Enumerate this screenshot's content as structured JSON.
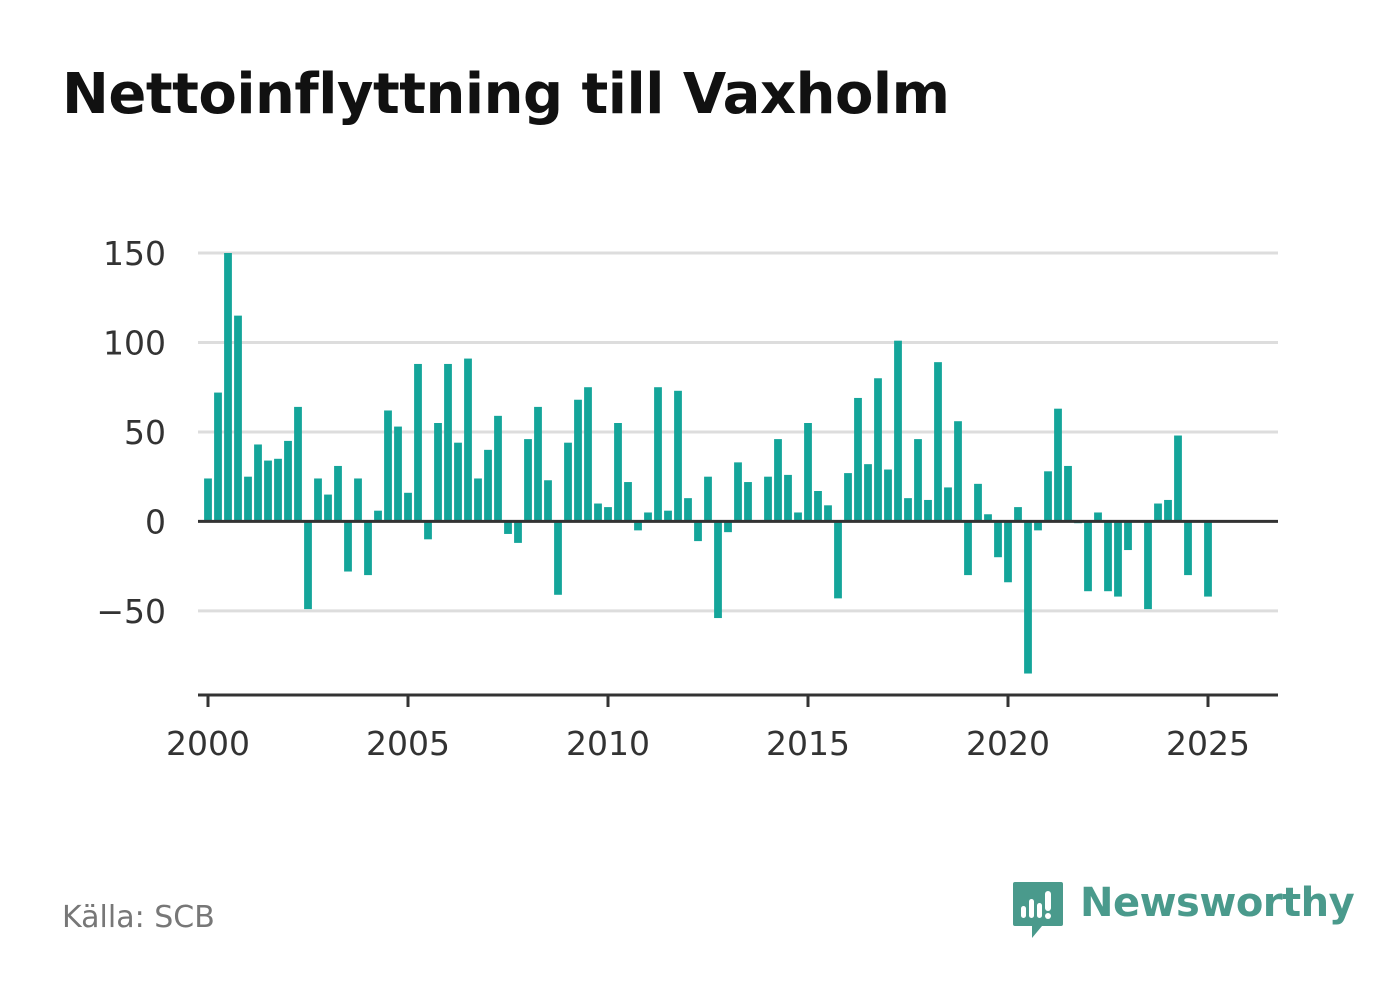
{
  "title": "Nettoinflyttning till Vaxholm",
  "source": "Källa: SCB",
  "brand": {
    "name": "Newsworthy",
    "icon": "newsworthy-logo-icon"
  },
  "colors": {
    "bar": "#14a59a",
    "grid": "#dddddd",
    "axis": "#333333",
    "brand": "#4a9a8c"
  },
  "chart_data": {
    "type": "bar",
    "title": "Nettoinflyttning till Vaxholm",
    "xlabel": "",
    "ylabel": "",
    "x_ticks": [
      "2000",
      "2005",
      "2010",
      "2015",
      "2020",
      "2025"
    ],
    "y_ticks": [
      150,
      100,
      50,
      0,
      -50
    ],
    "y_tick_labels": [
      "150",
      "100",
      "50",
      "0",
      "−50"
    ],
    "xlim": [
      1999.75,
      2026.75
    ],
    "ylim": [
      -97,
      150
    ],
    "grid": true,
    "legend": "none",
    "x_unit": "year (quarterly)",
    "x": [
      2000.0,
      2000.25,
      2000.5,
      2000.75,
      2001.0,
      2001.25,
      2001.5,
      2001.75,
      2002.0,
      2002.25,
      2002.5,
      2002.75,
      2003.0,
      2003.25,
      2003.5,
      2003.75,
      2004.0,
      2004.25,
      2004.5,
      2004.75,
      2005.0,
      2005.25,
      2005.5,
      2005.75,
      2006.0,
      2006.25,
      2006.5,
      2006.75,
      2007.0,
      2007.25,
      2007.5,
      2007.75,
      2008.0,
      2008.25,
      2008.5,
      2008.75,
      2009.0,
      2009.25,
      2009.5,
      2009.75,
      2010.0,
      2010.25,
      2010.5,
      2010.75,
      2011.0,
      2011.25,
      2011.5,
      2011.75,
      2012.0,
      2012.25,
      2012.5,
      2012.75,
      2013.0,
      2013.25,
      2013.5,
      2013.75,
      2014.0,
      2014.25,
      2014.5,
      2014.75,
      2015.0,
      2015.25,
      2015.5,
      2015.75,
      2016.0,
      2016.25,
      2016.5,
      2016.75,
      2017.0,
      2017.25,
      2017.5,
      2017.75,
      2018.0,
      2018.25,
      2018.5,
      2018.75,
      2019.0,
      2019.25,
      2019.5,
      2019.75,
      2020.0,
      2020.25,
      2020.5,
      2020.75,
      2021.0,
      2021.25,
      2021.5,
      2021.75,
      2022.0,
      2022.25,
      2022.5,
      2022.75,
      2023.0,
      2023.25,
      2023.5,
      2023.75,
      2024.0,
      2024.25,
      2024.5,
      2024.75,
      2025.0
    ],
    "values": [
      24,
      72,
      150,
      115,
      25,
      43,
      34,
      35,
      45,
      64,
      -49,
      24,
      15,
      31,
      -28,
      24,
      -30,
      6,
      62,
      53,
      16,
      88,
      -10,
      55,
      88,
      44,
      91,
      24,
      40,
      59,
      -7,
      -12,
      46,
      64,
      23,
      -41,
      44,
      68,
      75,
      10,
      8,
      55,
      22,
      -5,
      5,
      75,
      6,
      73,
      13,
      -11,
      25,
      -54,
      -6,
      33,
      22,
      0,
      25,
      46,
      26,
      5,
      55,
      17,
      9,
      -43,
      27,
      69,
      32,
      80,
      29,
      101,
      13,
      46,
      12,
      89,
      19,
      56,
      -30,
      21,
      4,
      -20,
      -34,
      8,
      -85,
      -5,
      28,
      63,
      31,
      -1,
      -39,
      5,
      -39,
      -42,
      -16,
      0,
      -49,
      10,
      12,
      48,
      -30,
      0,
      -42
    ]
  }
}
